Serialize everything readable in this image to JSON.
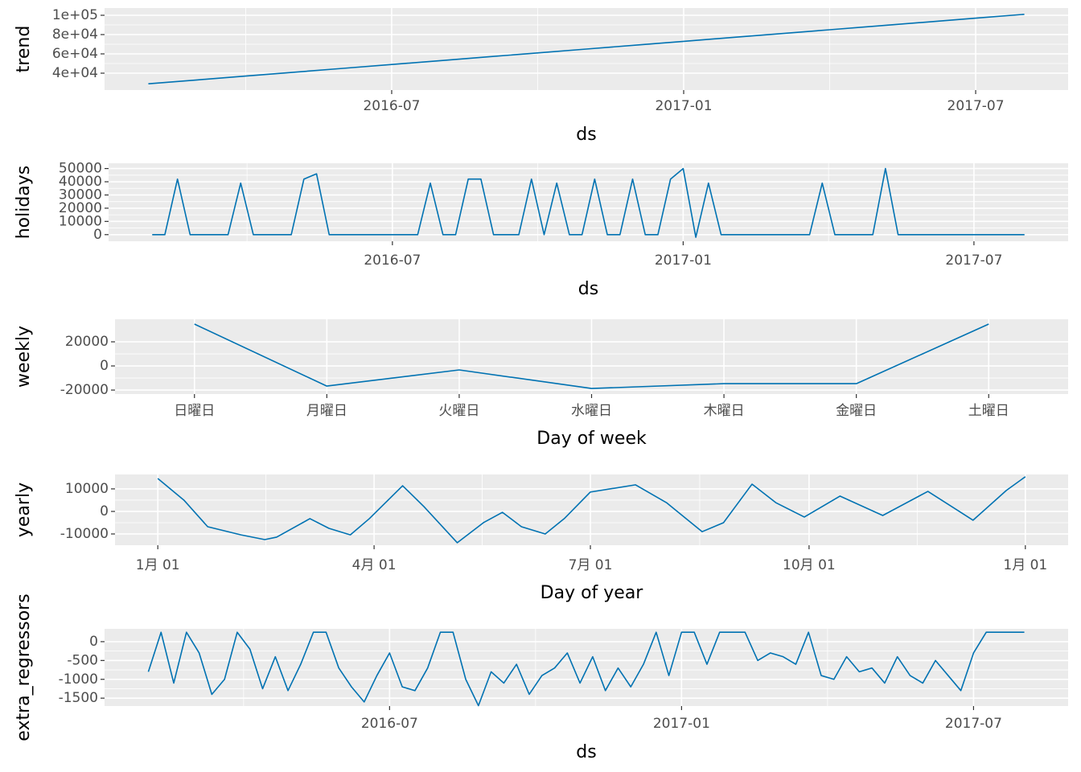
{
  "chart_data": [
    {
      "type": "line",
      "ylabel": "trend",
      "xlabel": "ds",
      "color": "#0072B2",
      "categories": [
        null,
        null,
        null,
        null,
        null,
        "2016-07",
        null,
        null,
        null,
        null,
        null,
        "2017-01",
        null,
        null,
        null,
        null,
        null,
        "2017-07",
        null
      ],
      "values": [
        29000,
        33000,
        37000,
        41000,
        45000,
        49000,
        53000,
        57000,
        61000,
        65000,
        69000,
        73000,
        77000,
        81000,
        85000,
        89000,
        93000,
        97000,
        101000
      ],
      "ylim": [
        22500,
        107500
      ],
      "yticks": [
        {
          "value": 40000,
          "label": "4e+04"
        },
        {
          "value": 60000,
          "label": "6e+04"
        },
        {
          "value": 80000,
          "label": "8e+04"
        },
        {
          "value": 100000,
          "label": "1e+05"
        }
      ]
    },
    {
      "type": "line",
      "ylabel": "holidays",
      "xlabel": "ds",
      "color": "#0072B2",
      "categories": [
        null,
        null,
        null,
        null,
        null,
        null,
        null,
        null,
        null,
        null,
        null,
        null,
        null,
        null,
        null,
        null,
        null,
        null,
        null,
        "2016-07",
        null,
        null,
        null,
        null,
        null,
        null,
        null,
        null,
        null,
        null,
        null,
        null,
        null,
        null,
        null,
        null,
        null,
        null,
        null,
        null,
        null,
        null,
        "2017-01",
        null,
        null,
        null,
        null,
        null,
        null,
        null,
        null,
        null,
        null,
        null,
        null,
        null,
        null,
        null,
        null,
        null,
        null,
        null,
        null,
        null,
        null,
        "2017-07",
        null,
        null,
        null,
        null
      ],
      "values": [
        0,
        0,
        42000,
        0,
        0,
        0,
        0,
        39000,
        0,
        0,
        0,
        0,
        42000,
        46000,
        0,
        0,
        0,
        0,
        0,
        0,
        0,
        0,
        39000,
        0,
        0,
        42000,
        42000,
        0,
        0,
        0,
        42000,
        0,
        39000,
        0,
        0,
        42000,
        0,
        0,
        42000,
        0,
        0,
        42000,
        50000,
        -2000,
        39000,
        0,
        0,
        0,
        0,
        0,
        0,
        0,
        0,
        39000,
        0,
        0,
        0,
        0,
        50000,
        0,
        0,
        0,
        0,
        0,
        0,
        0,
        0,
        0,
        0,
        0
      ],
      "ylim": [
        -5000,
        54000
      ],
      "yticks": [
        0,
        10000,
        20000,
        30000,
        40000,
        50000
      ]
    },
    {
      "type": "line",
      "ylabel": "weekly",
      "xlabel": "Day of week",
      "color": "#0072B2",
      "categories": [
        "日曜日",
        "月曜日",
        "火曜日",
        "水曜日",
        "木曜日",
        "金曜日",
        "土曜日"
      ],
      "values": [
        34700,
        -16700,
        -3300,
        -18700,
        -14700,
        -14700,
        34700
      ],
      "ylim": [
        -23300,
        38700
      ],
      "yticks": [
        -20000,
        0,
        20000
      ]
    },
    {
      "type": "line",
      "ylabel": "yearly",
      "xlabel": "Day of year",
      "color": "#0072B2",
      "x": [
        0,
        11,
        21,
        35,
        45,
        50,
        64,
        72,
        81,
        89,
        103,
        112,
        126,
        137,
        145,
        153,
        163,
        171,
        182,
        201,
        214,
        229,
        238,
        250,
        260,
        272,
        287,
        305,
        324,
        343,
        357,
        365
      ],
      "values": [
        14600,
        5000,
        -6800,
        -10400,
        -12500,
        -11400,
        -3200,
        -7500,
        -10400,
        -3200,
        11400,
        2100,
        -13900,
        -5000,
        -400,
        -6800,
        -10000,
        -3200,
        8600,
        11800,
        3900,
        -9000,
        -5000,
        12100,
        3900,
        -2500,
        6800,
        -1800,
        8900,
        -3900,
        9300,
        15400
      ],
      "xlim": [
        -18,
        383
      ],
      "xticks": [
        {
          "value": 0,
          "label": "1月 01"
        },
        {
          "value": 91,
          "label": "4月 01"
        },
        {
          "value": 182,
          "label": "7月 01"
        },
        {
          "value": 274,
          "label": "10月 01"
        },
        {
          "value": 365,
          "label": "1月 01"
        }
      ],
      "ylim": [
        -15000,
        16400
      ],
      "yticks": [
        -10000,
        0,
        10000
      ]
    },
    {
      "type": "line",
      "ylabel": "extra_regressors",
      "xlabel": "ds",
      "color": "#0072B2",
      "categories": [
        null,
        null,
        null,
        null,
        null,
        null,
        null,
        null,
        null,
        null,
        null,
        null,
        null,
        null,
        null,
        null,
        null,
        null,
        null,
        "2016-07",
        null,
        null,
        null,
        null,
        null,
        null,
        null,
        null,
        null,
        null,
        null,
        null,
        null,
        null,
        null,
        null,
        null,
        null,
        null,
        null,
        null,
        null,
        "2017-01",
        null,
        null,
        null,
        null,
        null,
        null,
        null,
        null,
        null,
        null,
        null,
        null,
        null,
        null,
        null,
        null,
        null,
        null,
        null,
        null,
        null,
        null,
        "2017-07",
        null,
        null,
        null,
        null
      ],
      "values": [
        -800,
        250,
        -1100,
        250,
        -300,
        -1400,
        -1000,
        250,
        -200,
        -1250,
        -400,
        -1300,
        -600,
        250,
        250,
        -700,
        -1200,
        -1600,
        -900,
        -300,
        -1200,
        -1300,
        -700,
        250,
        250,
        -1000,
        -1700,
        -800,
        -1100,
        -600,
        -1400,
        -900,
        -700,
        -300,
        -1100,
        -400,
        -1300,
        -700,
        -1200,
        -600,
        250,
        -900,
        250,
        250,
        -600,
        250,
        250,
        250,
        -500,
        -300,
        -400,
        -600,
        250,
        -900,
        -1000,
        -400,
        -800,
        -700,
        -1100,
        -400,
        -900,
        -1100,
        -500,
        -900,
        -1300,
        -300,
        250,
        250,
        250,
        250
      ],
      "ylim": [
        -1710,
        340
      ],
      "yticks": [
        -1500,
        -1000,
        -500,
        0
      ]
    }
  ]
}
